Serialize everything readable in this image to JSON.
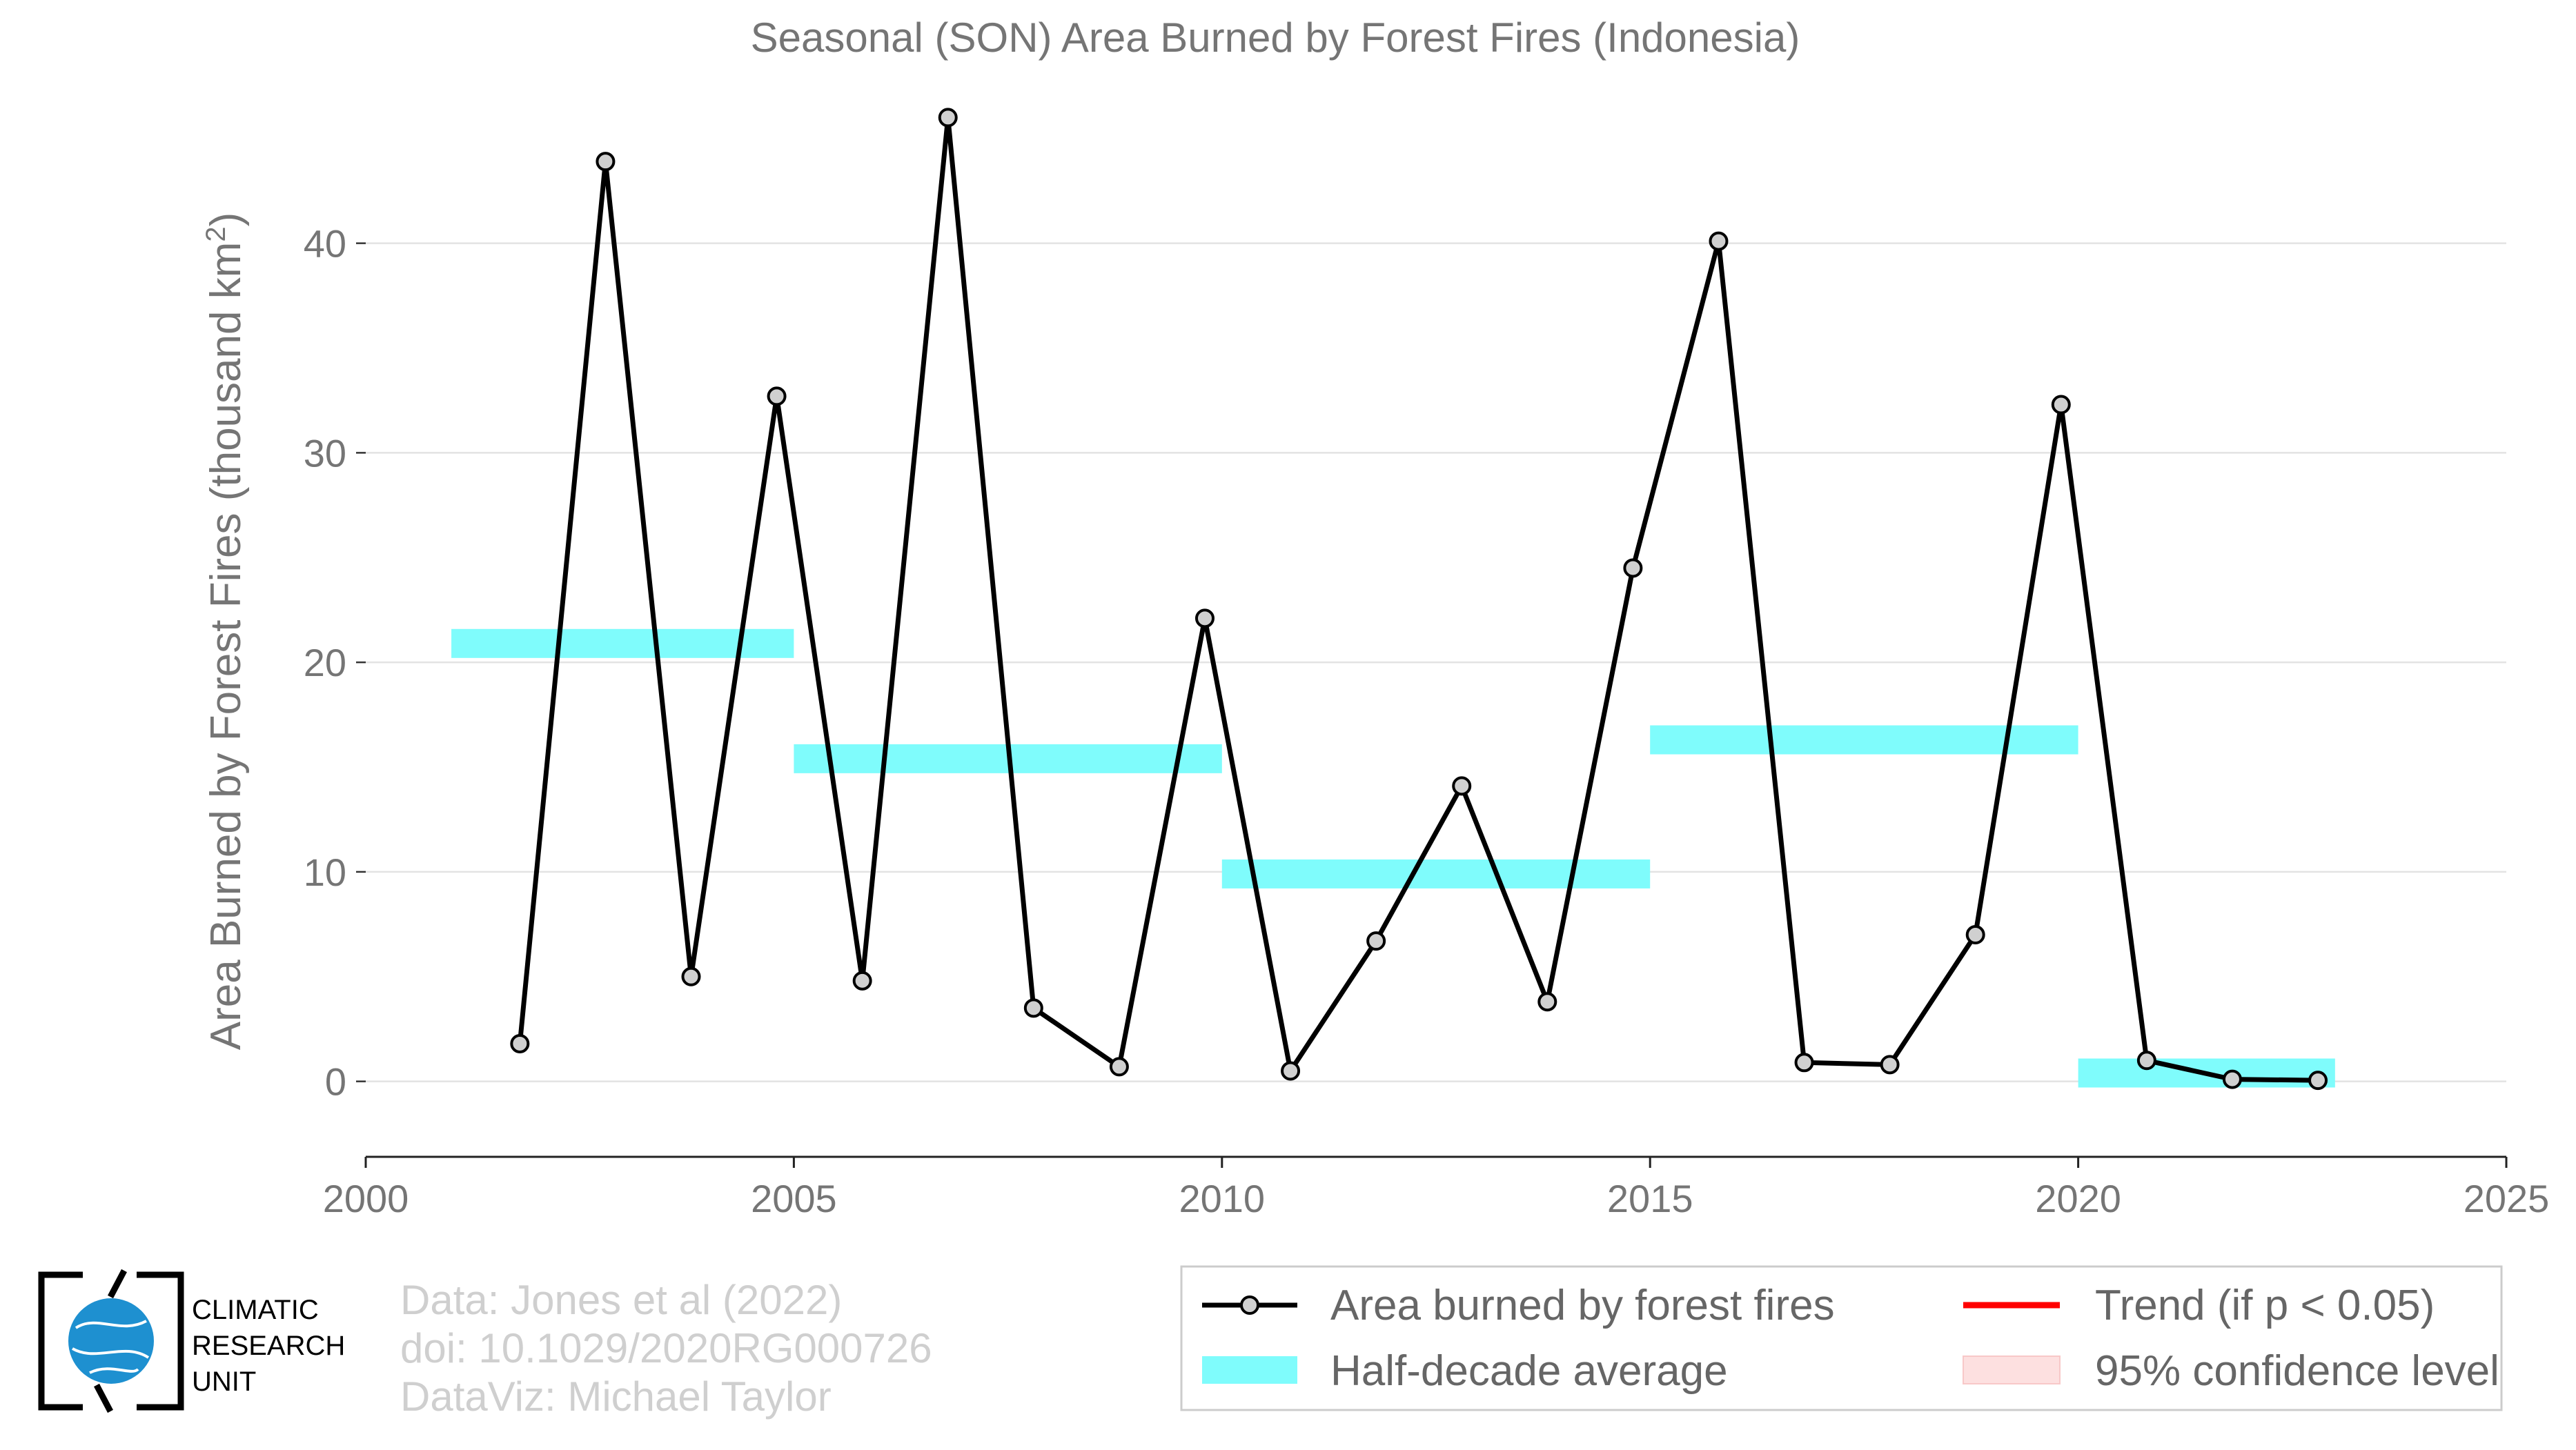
{
  "chart_data": {
    "type": "line",
    "title": "Seasonal (SON) Area Burned by Forest Fires (Indonesia)",
    "ylabel_main": "Area Burned by Forest Fires (thousand km",
    "ylabel_sup": "2",
    "ylabel_end": ")",
    "xlim": [
      2000,
      2025
    ],
    "ylim": [
      -3.6,
      47
    ],
    "xticks": [
      "2000",
      "2005",
      "2010",
      "2015",
      "2020",
      "2025"
    ],
    "yticks": [
      "0",
      "10",
      "20",
      "30",
      "40"
    ],
    "grid": true,
    "series": [
      {
        "name": "Area burned by forest fires",
        "color": "#000000",
        "x": [
          2001.8,
          2002.8,
          2003.8,
          2004.8,
          2005.8,
          2006.8,
          2007.8,
          2008.8,
          2009.8,
          2010.8,
          2011.8,
          2012.8,
          2013.8,
          2014.8,
          2015.8,
          2016.8,
          2017.8,
          2018.8,
          2019.8,
          2020.8,
          2021.8,
          2022.8
        ],
        "y": [
          1.8,
          43.9,
          5.0,
          32.7,
          4.8,
          46.0,
          3.5,
          0.7,
          22.1,
          0.5,
          6.7,
          14.1,
          3.8,
          24.5,
          40.1,
          0.9,
          0.8,
          7.0,
          32.3,
          1.0,
          0.1,
          0.05
        ]
      }
    ],
    "half_decade_average": {
      "name": "Half-decade average",
      "color": "#7ffcfc",
      "segments": [
        {
          "x0": 2001,
          "x1": 2005,
          "y": 20.9
        },
        {
          "x0": 2005,
          "x1": 2010,
          "y": 15.4
        },
        {
          "x0": 2010,
          "x1": 2015,
          "y": 9.9
        },
        {
          "x0": 2015,
          "x1": 2020,
          "y": 16.3
        },
        {
          "x0": 2020,
          "x1": 2023,
          "y": 0.4
        }
      ]
    },
    "legend": {
      "placement": "bottom-right",
      "entries": [
        {
          "label": "Area burned by forest fires",
          "kind": "line-marker",
          "color": "#000000"
        },
        {
          "label": "Trend (if p < 0.05)",
          "kind": "line",
          "color": "#ff0000"
        },
        {
          "label": "Half-decade average",
          "kind": "band",
          "color": "#7ffcfc"
        },
        {
          "label": "95% confidence level",
          "kind": "band",
          "color": "#fde0e0"
        }
      ]
    }
  },
  "credits": {
    "line1": "Data: Jones et al (2022)",
    "line2": "doi: 10.1029/2020RG000726",
    "line3": "DataViz: Michael Taylor"
  },
  "logo": {
    "line1": "CLIMATIC",
    "line2": "RESEARCH",
    "line3": "UNIT",
    "color": "#1e90d0"
  }
}
